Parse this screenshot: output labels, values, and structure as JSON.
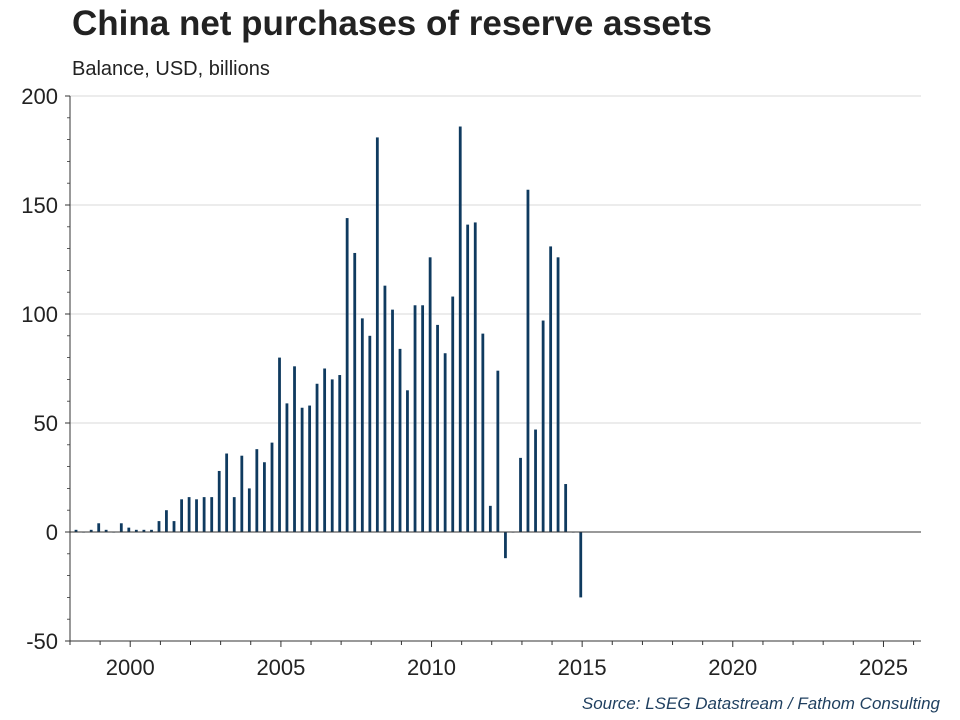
{
  "title": "China net purchases of reserve assets",
  "subtitle": "Balance, USD, billions",
  "source": "Source: LSEG Datastream / Fathom Consulting",
  "colors": {
    "bar": "#0f3a5f",
    "grid": "#d9d9d9",
    "axis": "#333333",
    "text": "#222222"
  },
  "chart_data": {
    "type": "bar",
    "x_axis_type": "date",
    "xlim": [
      "1998-01-01",
      "2026-04-01"
    ],
    "ylim": [
      -50,
      200
    ],
    "x_ticks": [
      "2000",
      "2005",
      "2010",
      "2015",
      "2020",
      "2025"
    ],
    "y_ticks": [
      "200",
      "150",
      "100",
      "50",
      "0",
      "-50"
    ],
    "grid": "horizontal",
    "series": [
      {
        "x": [
          "1998-03",
          "1998-06",
          "1998-09",
          "1998-12",
          "1999-03",
          "1999-06",
          "1999-09",
          "1999-12",
          "2000-03",
          "2000-06",
          "2000-09",
          "2000-12",
          "2001-03",
          "2001-06",
          "2001-09",
          "2001-12",
          "2002-03",
          "2002-06",
          "2002-09",
          "2002-12",
          "2003-03",
          "2003-06",
          "2003-09",
          "2003-12",
          "2004-03",
          "2004-06",
          "2004-09",
          "2004-12",
          "2005-03",
          "2005-06",
          "2005-09",
          "2005-12",
          "2006-03",
          "2006-06",
          "2006-09",
          "2006-12",
          "2007-03",
          "2007-06",
          "2007-09",
          "2007-12",
          "2008-03",
          "2008-06",
          "2008-09",
          "2008-12",
          "2009-03",
          "2009-06",
          "2009-09",
          "2009-12",
          "2010-03",
          "2010-06",
          "2010-09",
          "2010-12",
          "2011-03",
          "2011-06",
          "2011-09",
          "2011-12",
          "2012-03",
          "2012-06",
          "2012-09",
          "2012-12",
          "2013-03",
          "2013-06",
          "2013-09",
          "2013-12",
          "2014-03",
          "2014-06",
          "2014-09",
          "2014-12"
        ],
        "values": [
          1,
          0,
          1,
          4,
          1,
          0,
          4,
          2,
          1,
          1,
          1,
          5,
          10,
          5,
          15,
          16,
          15,
          16,
          16,
          28,
          36,
          16,
          35,
          20,
          38,
          32,
          41,
          80,
          59,
          76,
          57,
          58,
          68,
          75,
          70,
          72,
          144,
          128,
          98,
          90,
          181,
          113,
          102,
          84,
          65,
          104,
          104,
          126,
          95,
          82,
          108,
          186,
          141,
          142,
          91,
          12,
          74,
          -12,
          0,
          34,
          157,
          47,
          97,
          131,
          126,
          22,
          0,
          -30
        ]
      }
    ]
  }
}
